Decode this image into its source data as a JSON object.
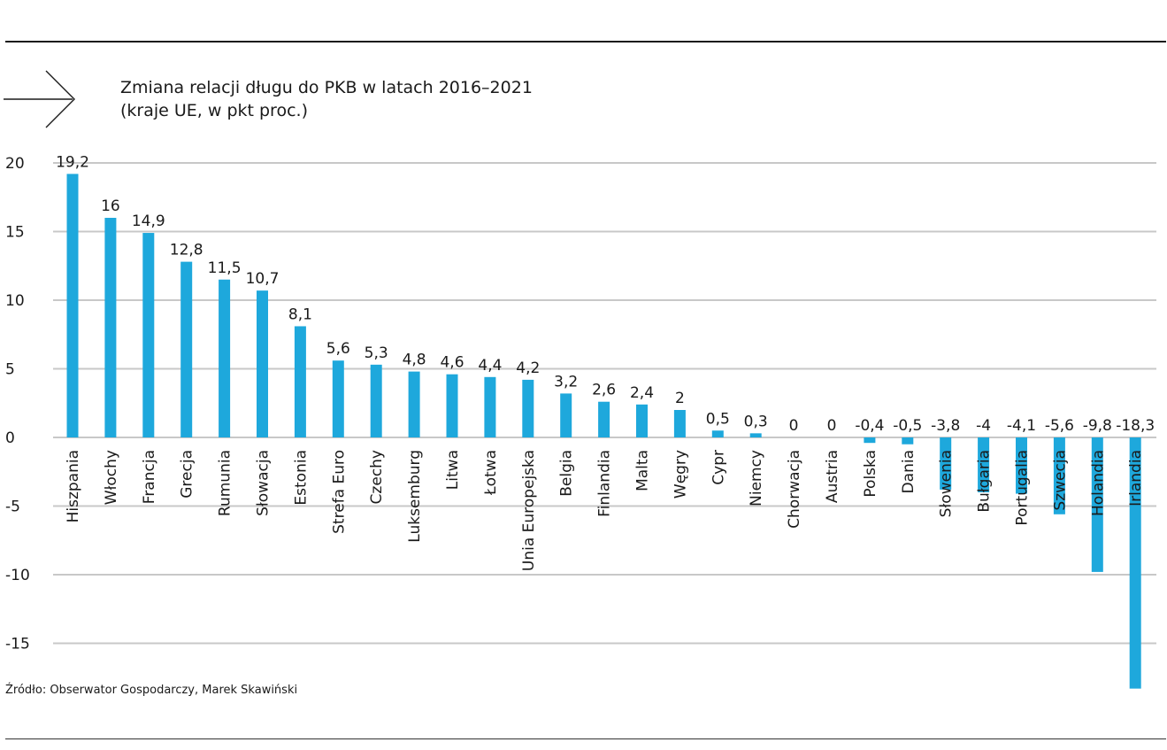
{
  "header": {
    "title_line1": "Zmiana relacji długu do PKB w latach 2016–2021",
    "title_line2": "(kraje UE, w pkt proc.)"
  },
  "footer": {
    "source": "Źródło: Obserwator Gospodarczy, Marek Skawiński"
  },
  "colors": {
    "bar": "#1ea8dc",
    "grid": "#c8c8c8"
  },
  "chart_data": {
    "type": "bar",
    "title": "Zmiana relacji długu do PKB w latach 2016–2021",
    "subtitle": "(kraje UE, w pkt proc.)",
    "xlabel": "",
    "ylabel": "",
    "ylim": [
      -20,
      20
    ],
    "yticks": [
      20,
      15,
      10,
      5,
      0,
      -5,
      -10,
      -15
    ],
    "grid": true,
    "categories": [
      "Hiszpania",
      "Włochy",
      "Francja",
      "Grecja",
      "Rumunia",
      "Słowacja",
      "Estonia",
      "Strefa Euro",
      "Czechy",
      "Luksemburg",
      "Litwa",
      "Łotwa",
      "Unia Europejska",
      "Belgia",
      "Finlandia",
      "Malta",
      "Węgry",
      "Cypr",
      "Niemcy",
      "Chorwacja",
      "Austria",
      "Polska",
      "Dania",
      "Słowenia",
      "Bułgaria",
      "Portugalia",
      "Szwecja",
      "Holandia",
      "Irlandia"
    ],
    "values": [
      19.2,
      16,
      14.9,
      12.8,
      11.5,
      10.7,
      8.1,
      5.6,
      5.3,
      4.8,
      4.6,
      4.4,
      4.2,
      3.2,
      2.6,
      2.4,
      2,
      0.5,
      0.3,
      0,
      0,
      -0.4,
      -0.5,
      -3.8,
      -4,
      -4.1,
      -5.6,
      -9.8,
      -18.3
    ],
    "value_labels": [
      "19,2",
      "16",
      "14,9",
      "12,8",
      "11,5",
      "10,7",
      "8,1",
      "5,6",
      "5,3",
      "4,8",
      "4,6",
      "4,4",
      "4,2",
      "3,2",
      "2,6",
      "2,4",
      "2",
      "0,5",
      "0,3",
      "0",
      "0",
      "-0,4",
      "-0,5",
      "-3,8",
      "-4",
      "-4,1",
      "-5,6",
      "-9,8",
      "-18,3"
    ],
    "tick_labels": [
      "20",
      "15",
      "10",
      "5",
      "0",
      "-5",
      "-10",
      "-15"
    ]
  }
}
